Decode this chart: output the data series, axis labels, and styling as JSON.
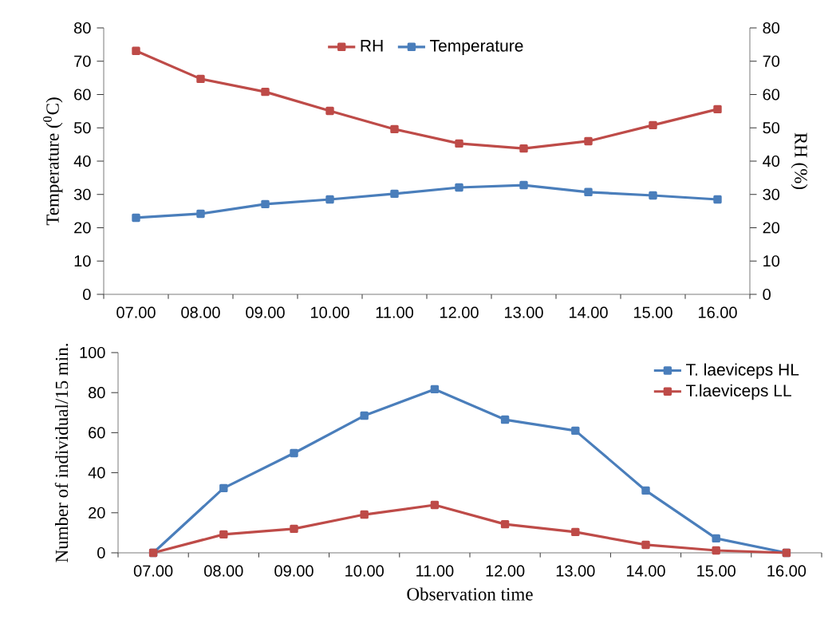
{
  "chart_data": [
    {
      "type": "line",
      "ylabel": "Temperature ($^{0}$C)",
      "y2label": "RH (%)",
      "categories": [
        "07.00",
        "08.00",
        "09.00",
        "10.00",
        "11.00",
        "12.00",
        "13.00",
        "14.00",
        "15.00",
        "16.00"
      ],
      "series": [
        {
          "name": "RH",
          "color": "#be4b48",
          "axis": "y2",
          "values": [
            73.1,
            64.7,
            60.8,
            55.1,
            49.6,
            45.3,
            43.8,
            46.0,
            50.8,
            55.6
          ]
        },
        {
          "name": "Temperature",
          "color": "#4a7ebb",
          "values": [
            23.0,
            24.2,
            27.1,
            28.5,
            30.2,
            32.1,
            32.8,
            30.7,
            29.7,
            28.5
          ]
        }
      ],
      "ylim": [
        0,
        80
      ],
      "yticks": [
        0,
        10,
        20,
        30,
        40,
        50,
        60,
        70,
        80
      ],
      "y2lim": [
        0,
        80
      ],
      "y2ticks": [
        0,
        10,
        20,
        30,
        40,
        50,
        60,
        70,
        80
      ],
      "legend": "top",
      "marker": "square",
      "line_style": "solid",
      "grid": false
    },
    {
      "type": "line",
      "ylabel": "Number of individual/15 min.",
      "xlabel": "Observation time",
      "categories": [
        "07.00",
        "08.00",
        "09.00",
        "10.00",
        "11.00",
        "12.00",
        "13.00",
        "14.00",
        "15.00",
        "16.00"
      ],
      "series": [
        {
          "name": "T. laeviceps HL",
          "color": "#4a7ebb",
          "values": [
            0,
            32.3,
            49.8,
            68.5,
            81.7,
            66.5,
            61,
            31.1,
            7.2,
            0
          ]
        },
        {
          "name": "T.laeviceps LL",
          "color": "#be4b48",
          "values": [
            0,
            9.2,
            12,
            19.1,
            23.9,
            14.3,
            10.4,
            4,
            1.2,
            0
          ]
        }
      ],
      "ylim": [
        0,
        100
      ],
      "yticks": [
        0,
        20,
        40,
        60,
        80,
        100
      ],
      "legend": "top right",
      "marker": "square",
      "line_style": "solid",
      "grid": false
    }
  ]
}
